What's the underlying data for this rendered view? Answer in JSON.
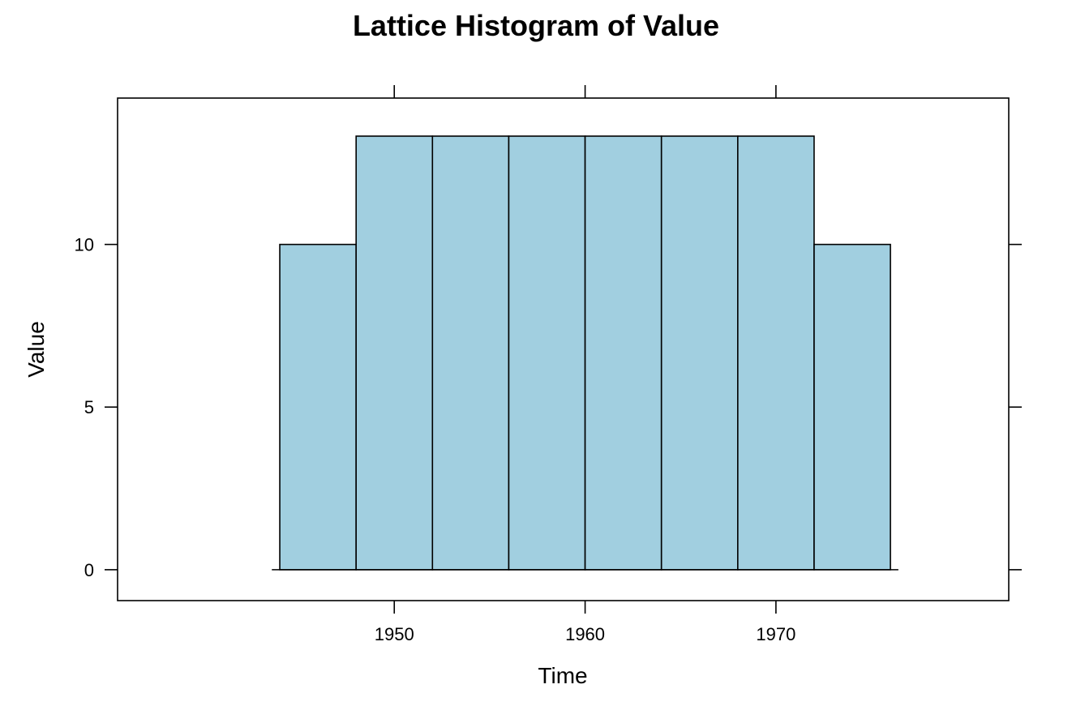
{
  "chart_data": {
    "type": "bar",
    "title": "Lattice Histogram of Value",
    "xlabel": "Time",
    "ylabel": "Value",
    "bin_edges": [
      1944,
      1948,
      1952,
      1956,
      1960,
      1964,
      1968,
      1972,
      1976
    ],
    "values": [
      10,
      13.33,
      13.33,
      13.33,
      13.33,
      13.33,
      13.33,
      10
    ],
    "xlim": [
      1935.5,
      1982.2
    ],
    "ylim": [
      -0.95,
      14.5
    ],
    "x_ticks": [
      1950,
      1960,
      1970
    ],
    "y_ticks": [
      0,
      5,
      10
    ],
    "x_tick_labels": [
      "1950",
      "1960",
      "1970"
    ],
    "y_tick_labels": [
      "0",
      "5",
      "10"
    ],
    "grid": false,
    "bar_color": "#a1cfe0",
    "bar_edge_color": "#000000"
  }
}
